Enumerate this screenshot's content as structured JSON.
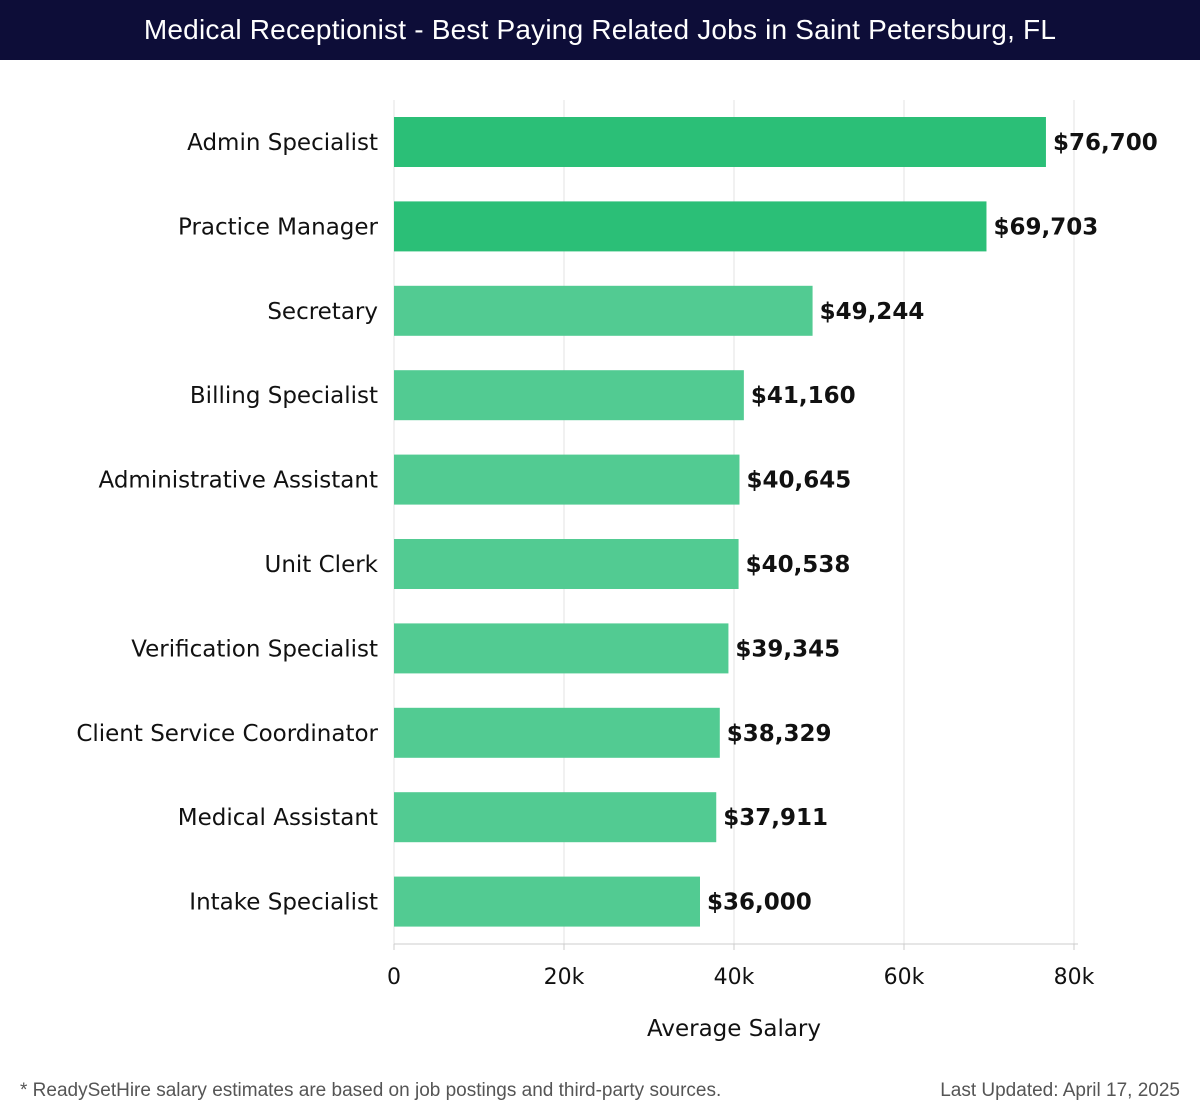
{
  "header": {
    "title": "Medical Receptionist - Best Paying Related Jobs in Saint Petersburg, FL"
  },
  "chart_data": {
    "type": "bar",
    "orientation": "horizontal",
    "categories": [
      "Admin Specialist",
      "Practice Manager",
      "Secretary",
      "Billing Specialist",
      "Administrative Assistant",
      "Unit Clerk",
      "Verification Specialist",
      "Client Service Coordinator",
      "Medical Assistant",
      "Intake Specialist"
    ],
    "values": [
      76700,
      69703,
      49244,
      41160,
      40645,
      40538,
      39345,
      38329,
      37911,
      36000
    ],
    "value_labels": [
      "$76,700",
      "$69,703",
      "$49,244",
      "$41,160",
      "$40,645",
      "$40,538",
      "$39,345",
      "$38,329",
      "$37,911",
      "$36,000"
    ],
    "xlabel": "Average Salary",
    "xlim": [
      0,
      80000
    ],
    "xticks": [
      {
        "value": 0,
        "label": "0"
      },
      {
        "value": 20000,
        "label": "20k"
      },
      {
        "value": 40000,
        "label": "40k"
      },
      {
        "value": 60000,
        "label": "60k"
      },
      {
        "value": 80000,
        "label": "80k"
      }
    ],
    "grid": true,
    "colors": {
      "top": "#2bbf77",
      "rest": "#52cb92",
      "grid": "#e3e3e3",
      "axis": "#cccccc"
    }
  },
  "footer": {
    "note": "* ReadySetHire salary estimates are based on job postings and third-party sources.",
    "updated": "Last Updated: April 17, 2025"
  }
}
